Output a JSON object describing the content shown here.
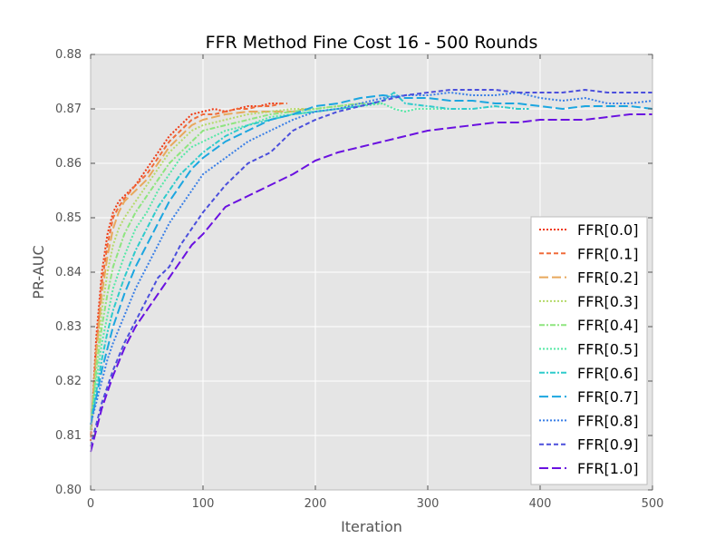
{
  "chart_data": {
    "type": "line",
    "title": "FFR Method Fine Cost 16 - 500 Rounds",
    "xlabel": "Iteration",
    "ylabel": "PR-AUC",
    "xlim": [
      0,
      500
    ],
    "ylim": [
      0.8,
      0.88
    ],
    "xticks": [
      0,
      100,
      200,
      300,
      400,
      500
    ],
    "yticks": [
      0.8,
      0.81,
      0.82,
      0.83,
      0.84,
      0.85,
      0.86,
      0.87,
      0.88
    ],
    "xtick_labels": [
      "0",
      "100",
      "200",
      "300",
      "400",
      "500"
    ],
    "ytick_labels": [
      "0.80",
      "0.81",
      "0.82",
      "0.83",
      "0.84",
      "0.85",
      "0.86",
      "0.87",
      "0.88"
    ],
    "grid": true,
    "legend_position": "lower-right",
    "plot_background": "#e5e5e5",
    "series": [
      {
        "name": "FFR[0.0]",
        "color": "#ef3a14",
        "dash": "dotted",
        "x": [
          0,
          5,
          10,
          15,
          20,
          25,
          30,
          40,
          50,
          60,
          70,
          80,
          90,
          100,
          110,
          120,
          130,
          140,
          150,
          160,
          170
        ],
        "y": [
          0.809,
          0.828,
          0.84,
          0.847,
          0.851,
          0.853,
          0.854,
          0.856,
          0.859,
          0.862,
          0.865,
          0.867,
          0.869,
          0.8695,
          0.87,
          0.8695,
          0.87,
          0.8705,
          0.8705,
          0.871,
          0.871
        ]
      },
      {
        "name": "FFR[0.1]",
        "color": "#f06b3a",
        "dash": "dashed",
        "x": [
          0,
          5,
          10,
          15,
          20,
          25,
          30,
          40,
          50,
          60,
          70,
          80,
          90,
          100,
          110,
          120,
          130,
          140,
          150,
          160,
          170,
          175
        ],
        "y": [
          0.81,
          0.826,
          0.838,
          0.845,
          0.85,
          0.852,
          0.8535,
          0.856,
          0.858,
          0.861,
          0.864,
          0.866,
          0.868,
          0.869,
          0.869,
          0.8695,
          0.87,
          0.87,
          0.8705,
          0.8705,
          0.871,
          0.871
        ]
      },
      {
        "name": "FFR[0.2]",
        "color": "#e8a85c",
        "dash": "longdash",
        "x": [
          0,
          5,
          10,
          15,
          20,
          25,
          30,
          40,
          50,
          60,
          70,
          80,
          90,
          100,
          120,
          140,
          160,
          180,
          190
        ],
        "y": [
          0.811,
          0.825,
          0.836,
          0.843,
          0.848,
          0.851,
          0.853,
          0.855,
          0.857,
          0.86,
          0.863,
          0.865,
          0.867,
          0.868,
          0.869,
          0.8695,
          0.8695,
          0.8695,
          0.87
        ]
      },
      {
        "name": "FFR[0.3]",
        "color": "#b5da6a",
        "dash": "dotted",
        "x": [
          0,
          5,
          10,
          15,
          20,
          25,
          30,
          40,
          50,
          60,
          70,
          80,
          90,
          100,
          120,
          140,
          160,
          180,
          200,
          220,
          240
        ],
        "y": [
          0.811,
          0.823,
          0.833,
          0.84,
          0.845,
          0.848,
          0.85,
          0.853,
          0.856,
          0.859,
          0.862,
          0.864,
          0.866,
          0.867,
          0.868,
          0.869,
          0.8695,
          0.87,
          0.87,
          0.8705,
          0.871
        ]
      },
      {
        "name": "FFR[0.4]",
        "color": "#8ee57f",
        "dash": "dashdot",
        "x": [
          0,
          5,
          10,
          15,
          20,
          30,
          40,
          50,
          60,
          70,
          80,
          90,
          100,
          120,
          140,
          160,
          180,
          200,
          220,
          240,
          260
        ],
        "y": [
          0.811,
          0.822,
          0.83,
          0.836,
          0.841,
          0.847,
          0.851,
          0.854,
          0.857,
          0.86,
          0.862,
          0.864,
          0.866,
          0.867,
          0.868,
          0.869,
          0.8695,
          0.87,
          0.8705,
          0.871,
          0.871
        ]
      },
      {
        "name": "FFR[0.5]",
        "color": "#55e8a6",
        "dash": "dotted",
        "x": [
          0,
          5,
          10,
          15,
          20,
          30,
          40,
          50,
          60,
          70,
          80,
          90,
          100,
          120,
          140,
          160,
          180,
          200,
          220,
          240,
          260,
          270,
          280,
          290,
          300,
          320
        ],
        "y": [
          0.812,
          0.82,
          0.827,
          0.832,
          0.837,
          0.843,
          0.848,
          0.851,
          0.855,
          0.858,
          0.861,
          0.863,
          0.864,
          0.866,
          0.867,
          0.8685,
          0.869,
          0.8695,
          0.87,
          0.8705,
          0.871,
          0.87,
          0.8695,
          0.87,
          0.87,
          0.87
        ]
      },
      {
        "name": "FFR[0.6]",
        "color": "#2ecbcb",
        "dash": "dashdot",
        "x": [
          0,
          5,
          10,
          15,
          20,
          30,
          40,
          50,
          60,
          70,
          80,
          100,
          120,
          140,
          160,
          180,
          200,
          220,
          240,
          260,
          270,
          280,
          300,
          320,
          340,
          360,
          380,
          390
        ],
        "y": [
          0.812,
          0.818,
          0.824,
          0.829,
          0.833,
          0.839,
          0.844,
          0.848,
          0.852,
          0.855,
          0.858,
          0.862,
          0.865,
          0.867,
          0.868,
          0.869,
          0.8695,
          0.87,
          0.8705,
          0.8715,
          0.873,
          0.871,
          0.8705,
          0.87,
          0.87,
          0.8705,
          0.87,
          0.87
        ]
      },
      {
        "name": "FFR[0.7]",
        "color": "#1ca6e0",
        "dash": "longdash",
        "x": [
          0,
          5,
          10,
          15,
          20,
          30,
          40,
          50,
          60,
          70,
          80,
          90,
          100,
          120,
          140,
          160,
          180,
          200,
          220,
          240,
          260,
          280,
          300,
          320,
          340,
          360,
          380,
          400,
          420,
          440,
          460,
          480,
          500
        ],
        "y": [
          0.812,
          0.817,
          0.822,
          0.826,
          0.83,
          0.836,
          0.841,
          0.845,
          0.849,
          0.853,
          0.856,
          0.859,
          0.861,
          0.864,
          0.866,
          0.868,
          0.869,
          0.8705,
          0.871,
          0.872,
          0.8725,
          0.872,
          0.872,
          0.8715,
          0.8715,
          0.871,
          0.871,
          0.8705,
          0.87,
          0.8705,
          0.8705,
          0.8705,
          0.87
        ]
      },
      {
        "name": "FFR[0.8]",
        "color": "#3a7fe6",
        "dash": "dotted",
        "x": [
          0,
          5,
          10,
          15,
          20,
          30,
          40,
          50,
          60,
          70,
          80,
          90,
          100,
          120,
          140,
          160,
          180,
          200,
          220,
          240,
          260,
          280,
          300,
          320,
          340,
          360,
          380,
          400,
          420,
          440,
          460,
          480,
          500
        ],
        "y": [
          0.812,
          0.816,
          0.82,
          0.824,
          0.827,
          0.832,
          0.837,
          0.841,
          0.845,
          0.849,
          0.852,
          0.855,
          0.858,
          0.861,
          0.864,
          0.866,
          0.868,
          0.8695,
          0.87,
          0.871,
          0.872,
          0.8725,
          0.8725,
          0.873,
          0.8725,
          0.8725,
          0.873,
          0.872,
          0.8715,
          0.872,
          0.871,
          0.871,
          0.8715
        ]
      },
      {
        "name": "FFR[0.9]",
        "color": "#4b4fdc",
        "dash": "dashed",
        "x": [
          0,
          5,
          10,
          15,
          20,
          30,
          40,
          50,
          60,
          70,
          80,
          90,
          100,
          120,
          140,
          160,
          180,
          200,
          220,
          240,
          260,
          280,
          300,
          320,
          340,
          360,
          380,
          400,
          420,
          440,
          460,
          480,
          500
        ],
        "y": [
          0.808,
          0.812,
          0.816,
          0.819,
          0.822,
          0.827,
          0.831,
          0.835,
          0.839,
          0.841,
          0.845,
          0.848,
          0.851,
          0.856,
          0.86,
          0.862,
          0.866,
          0.868,
          0.8695,
          0.8705,
          0.8715,
          0.8725,
          0.873,
          0.8735,
          0.8735,
          0.8735,
          0.873,
          0.873,
          0.873,
          0.8735,
          0.873,
          0.873,
          0.873
        ]
      },
      {
        "name": "FFR[1.0]",
        "color": "#6a11e0",
        "dash": "longdash",
        "x": [
          0,
          5,
          10,
          15,
          20,
          30,
          40,
          50,
          60,
          70,
          80,
          90,
          100,
          120,
          140,
          160,
          180,
          200,
          220,
          240,
          260,
          280,
          300,
          320,
          340,
          360,
          380,
          400,
          420,
          440,
          460,
          480,
          500
        ],
        "y": [
          0.807,
          0.811,
          0.815,
          0.818,
          0.821,
          0.826,
          0.83,
          0.833,
          0.836,
          0.839,
          0.842,
          0.845,
          0.847,
          0.852,
          0.854,
          0.856,
          0.858,
          0.8605,
          0.862,
          0.863,
          0.864,
          0.865,
          0.866,
          0.8665,
          0.867,
          0.8675,
          0.8675,
          0.868,
          0.868,
          0.868,
          0.8685,
          0.869,
          0.869
        ]
      }
    ]
  }
}
